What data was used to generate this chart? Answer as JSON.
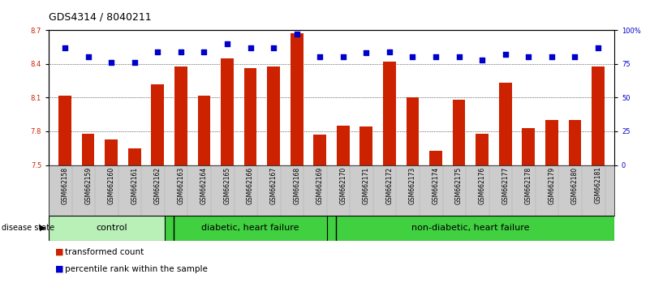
{
  "title": "GDS4314 / 8040211",
  "samples": [
    "GSM662158",
    "GSM662159",
    "GSM662160",
    "GSM662161",
    "GSM662162",
    "GSM662163",
    "GSM662164",
    "GSM662165",
    "GSM662166",
    "GSM662167",
    "GSM662168",
    "GSM662169",
    "GSM662170",
    "GSM662171",
    "GSM662172",
    "GSM662173",
    "GSM662174",
    "GSM662175",
    "GSM662176",
    "GSM662177",
    "GSM662178",
    "GSM662179",
    "GSM662180",
    "GSM662181"
  ],
  "bar_values": [
    8.12,
    7.78,
    7.73,
    7.65,
    8.22,
    8.38,
    8.12,
    8.45,
    8.36,
    8.38,
    8.67,
    7.77,
    7.85,
    7.84,
    8.42,
    8.1,
    7.63,
    8.08,
    7.78,
    8.23,
    7.83,
    7.9,
    7.9,
    8.38
  ],
  "percentile_values": [
    87,
    80,
    76,
    76,
    84,
    84,
    84,
    90,
    87,
    87,
    97,
    80,
    80,
    83,
    84,
    80,
    80,
    80,
    78,
    82,
    80,
    80,
    80,
    87
  ],
  "group_labels": [
    "control",
    "diabetic, heart failure",
    "non-diabetic, heart failure"
  ],
  "group_ranges": [
    [
      0,
      4
    ],
    [
      5,
      11
    ],
    [
      12,
      23
    ]
  ],
  "group_colors": [
    "#b8f0b8",
    "#40d040",
    "#40d040"
  ],
  "ylim": [
    7.5,
    8.7
  ],
  "yticks": [
    7.5,
    7.8,
    8.1,
    8.4,
    8.7
  ],
  "right_yticks": [
    0,
    25,
    50,
    75,
    100
  ],
  "right_ytick_labels": [
    "0",
    "25",
    "50",
    "75",
    "100%"
  ],
  "bar_color": "#cc2200",
  "dot_color": "#0000cc",
  "title_fontsize": 9,
  "tick_fontsize": 6,
  "sample_fontsize": 5.5,
  "group_label_fontsize": 8,
  "legend_fontsize": 7.5
}
